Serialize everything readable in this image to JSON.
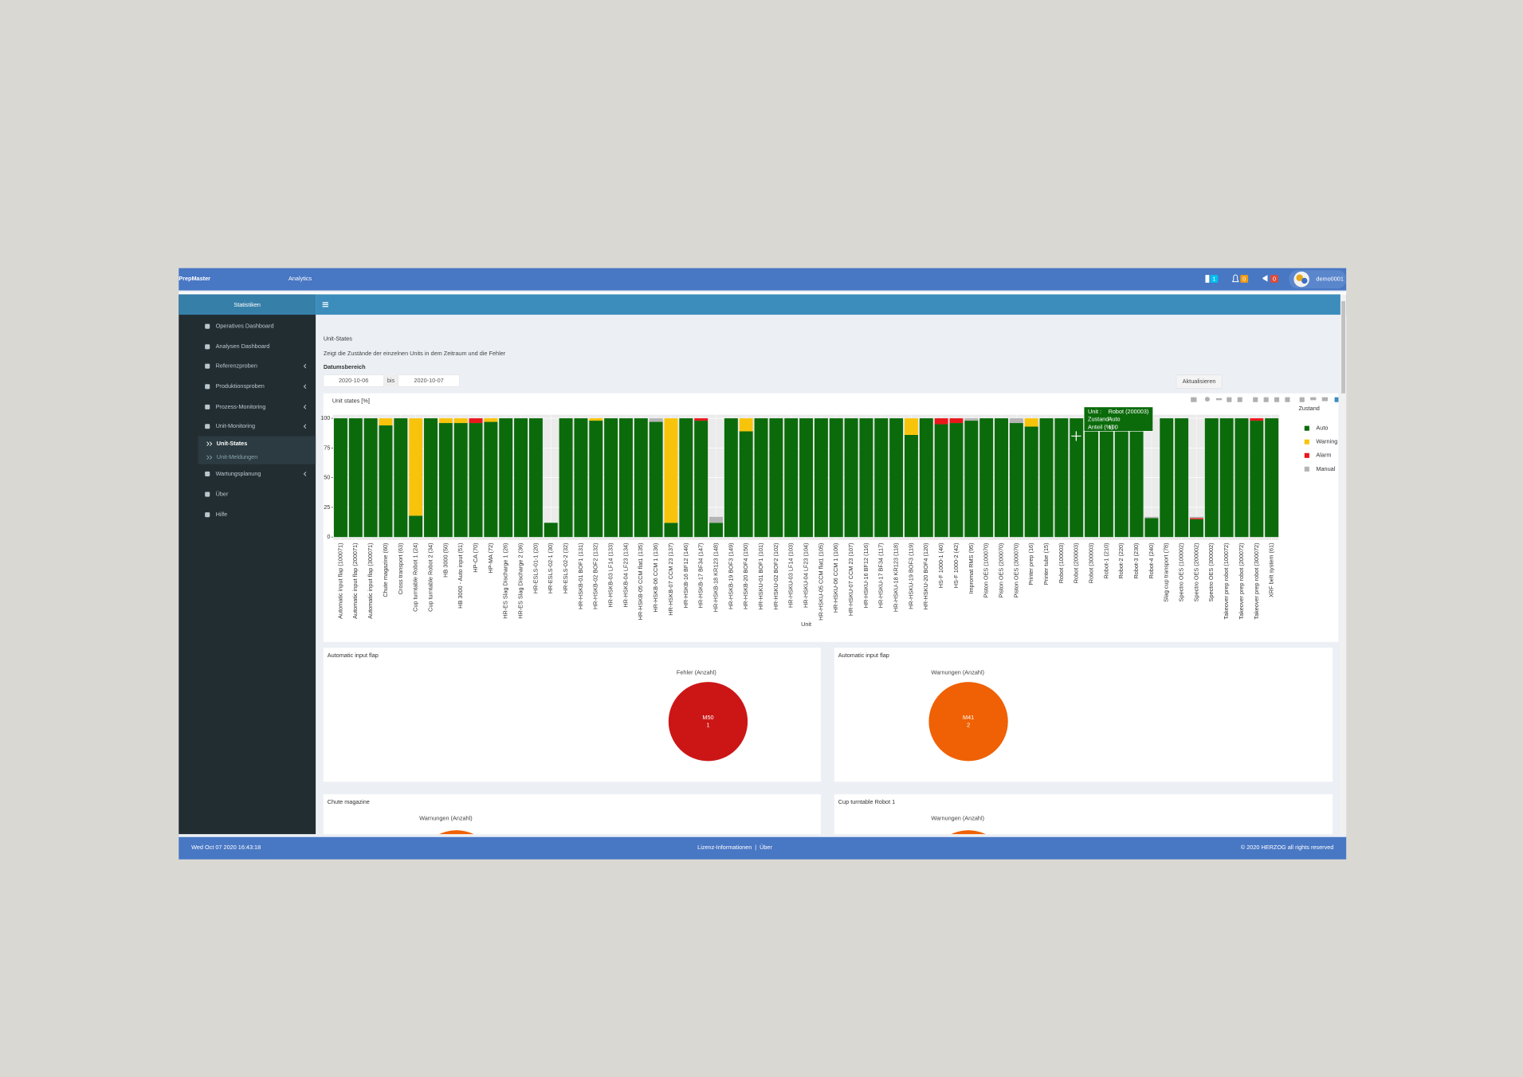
{
  "header": {
    "brand_bold": "PrepMaster",
    "brand_light": "Analytics",
    "badges": [
      "1",
      "0",
      "0"
    ],
    "user": "demo0001"
  },
  "sidebar": {
    "title": "Statistiken",
    "items": [
      "Operatives Dashboard",
      "Analysen Dashboard",
      "Referenzproben",
      "Produktionsproben",
      "Prozess-Monitoring",
      "Unit-Monitoring"
    ],
    "subitems": [
      "Unit-States",
      "Unit-Meldungen"
    ],
    "items_after": [
      "Wartungsplanung",
      "Über",
      "Hilfe"
    ]
  },
  "page": {
    "title": "Unit-States",
    "subtitle": "Zeigt die Zustände der einzelnen Units in dem Zeitraum und die Fehler",
    "date_label": "Datumsbereich",
    "date_from": "2020-10-06",
    "date_sep": "bis",
    "date_to": "2020-10-07",
    "button": "Aktualisieren"
  },
  "chart_data": [
    {
      "type": "bar",
      "stacked": true,
      "title": "Unit states [%]",
      "x_label": "Unit",
      "legend_title": "Zustand",
      "legend": "right",
      "grid": true,
      "ylim": [
        0,
        103
      ],
      "yticks": [
        0,
        25,
        50,
        75,
        100
      ],
      "categories": [
        "Automatic input flap (100071)",
        "Automatic input flap (200071)",
        "Automatic input flap (300071)",
        "Chute magazine (60)",
        "Cross transport (63)",
        "Cup turntable Robot 1 (24)",
        "Cup turntable Robot 2 (34)",
        "HB 3000 (50)",
        "HB 3000 - Auto input (51)",
        "HP-CA (70)",
        "HP-MA (72)",
        "HR-ES Slag Discharge 1 (26)",
        "HR-ES Slag Discharge 2 (36)",
        "HR-ESLS-01-1 (20)",
        "HR-ESLS-02-1 (30)",
        "HR-ESLS-02-2 (32)",
        "HR-HSKB-01 BOF1 (131)",
        "HR-HSKB-02 BOF2 (132)",
        "HR-HSKB-03 LF14 (133)",
        "HR-HSKB-04 LF23 (134)",
        "HR-HSKB-05 CCM flat1 (135)",
        "HR-HSKB-06 CCM 1 (136)",
        "HR-HSKB-07 CCM 23 (137)",
        "HR-HSKB-16 BF12 (146)",
        "HR-HSKB-17 BF34 (147)",
        "HR-HSKB-18 KR123 (148)",
        "HR-HSKB-19 BOF3 (149)",
        "HR-HSKB-20 BOF4 (150)",
        "HR-HSKU-01 BOF1 (101)",
        "HR-HSKU-02 BOF2 (102)",
        "HR-HSKU-03 LF14 (103)",
        "HR-HSKU-04 LF23 (104)",
        "HR-HSKU-05 CCM flat1 (105)",
        "HR-HSKU-06 CCM 1 (106)",
        "HR-HSKU-07 CCM 23 (107)",
        "HR-HSKU-16 BF12 (116)",
        "HR-HSKU-17 BF34 (117)",
        "HR-HSKU-18 KR123 (118)",
        "HR-HSKU-19 BOF3 (119)",
        "HR-HSKU-20 BOF4 (120)",
        "HS-F 1000-1 (40)",
        "HS-F 1000-2 (42)",
        "Impromat RMS (95)",
        "Piston OES (100070)",
        "Piston OES (200070)",
        "Piston OES (300070)",
        "Printer prep (16)",
        "Printer tube (15)",
        "Robot (100003)",
        "Robot (200003)",
        "Robot (300003)",
        "Robot-1 (210)",
        "Robot-2 (220)",
        "Robot-3 (230)",
        "Robot-4 (240)",
        "Slag cup transport (78)",
        "Spectro OES (100002)",
        "Spectro OES (200002)",
        "Spectro OES (300002)",
        "Takeover prep robot (100072)",
        "Takeover prep robot (200072)",
        "Takeover prep robot (300072)",
        "XRF belt system (61)"
      ],
      "series": [
        {
          "name": "Auto",
          "color": "#0b6b0b",
          "values": [
            100,
            100,
            100,
            94,
            100,
            18,
            100,
            96,
            96,
            96,
            97,
            100,
            100,
            100,
            12,
            100,
            100,
            98,
            100,
            100,
            100,
            97,
            12,
            100,
            98,
            12,
            100,
            89,
            100,
            100,
            100,
            100,
            100,
            100,
            100,
            100,
            100,
            100,
            86,
            100,
            95,
            96,
            98,
            100,
            100,
            96,
            93,
            100,
            100,
            100,
            100,
            100,
            100,
            100,
            16,
            100,
            100,
            15,
            100,
            100,
            100,
            98,
            100
          ]
        },
        {
          "name": "Warning",
          "color": "#f8c40b",
          "values": [
            0,
            0,
            0,
            6,
            0,
            82,
            0,
            4,
            4,
            0,
            3,
            0,
            0,
            0,
            0,
            0,
            0,
            2,
            0,
            0,
            0,
            0,
            88,
            0,
            0,
            0,
            0,
            11,
            0,
            0,
            0,
            0,
            0,
            0,
            0,
            0,
            0,
            0,
            14,
            0,
            0,
            0,
            0,
            0,
            0,
            0,
            7,
            0,
            0,
            0,
            0,
            0,
            0,
            0,
            0,
            0,
            0,
            0,
            0,
            0,
            0,
            0,
            0
          ]
        },
        {
          "name": "Alarm",
          "color": "#e9171c",
          "values": [
            0,
            0,
            0,
            0,
            0,
            0,
            0,
            0,
            0,
            4,
            0,
            0,
            0,
            0,
            0,
            0,
            0,
            0,
            0,
            0,
            0,
            0,
            0,
            0,
            2,
            0,
            0,
            0,
            0,
            0,
            0,
            0,
            0,
            0,
            0,
            0,
            0,
            0,
            0,
            0,
            5,
            4,
            0,
            0,
            0,
            0,
            0,
            0,
            0,
            0,
            0,
            0,
            0,
            0,
            0,
            0,
            0,
            1,
            0,
            0,
            0,
            2,
            0
          ]
        },
        {
          "name": "Manual",
          "color": "#b4b4b4",
          "values": [
            0,
            0,
            0,
            0,
            0,
            0,
            0,
            0,
            0,
            0,
            0,
            0,
            0,
            0,
            0,
            0,
            0,
            0,
            0,
            0,
            0,
            3,
            0,
            0,
            0,
            5,
            0,
            0,
            0,
            0,
            0,
            0,
            0,
            0,
            0,
            0,
            0,
            0,
            0,
            0,
            0,
            0,
            2,
            0,
            0,
            4,
            0,
            0,
            0,
            0,
            0,
            0,
            0,
            0,
            1,
            0,
            0,
            1,
            0,
            0,
            0,
            0,
            0
          ]
        }
      ]
    },
    {
      "type": "pie",
      "panel_title": "Automatic input flap",
      "title": "Fehler (Anzahl)",
      "categories": [
        "M50"
      ],
      "values": [
        1
      ],
      "colors": [
        "#cc1616"
      ]
    },
    {
      "type": "pie",
      "panel_title": "Automatic input flap",
      "title": "Warnungen (Anzahl)",
      "categories": [
        "M41"
      ],
      "values": [
        2
      ],
      "colors": [
        "#ef6104"
      ]
    }
  ],
  "tooltip": {
    "rows": [
      [
        "Unit :",
        "Robot (200003)"
      ],
      [
        "Zustand :",
        "Auto"
      ],
      [
        "Anteil (%) :",
        "100"
      ]
    ]
  },
  "more_panels": [
    {
      "panel_title": "Chute magazine",
      "title": "Warnungen (Anzahl)"
    },
    {
      "panel_title": "Cup turntable Robot 1",
      "title": "Warnungen (Anzahl)"
    }
  ],
  "footer": {
    "datetime": "Wed Oct 07 2020 16:43:18",
    "links": [
      "Lizenz-Informationen",
      "|",
      "Über"
    ],
    "copyright": "© 2020 HERZOG all rights reserved"
  }
}
